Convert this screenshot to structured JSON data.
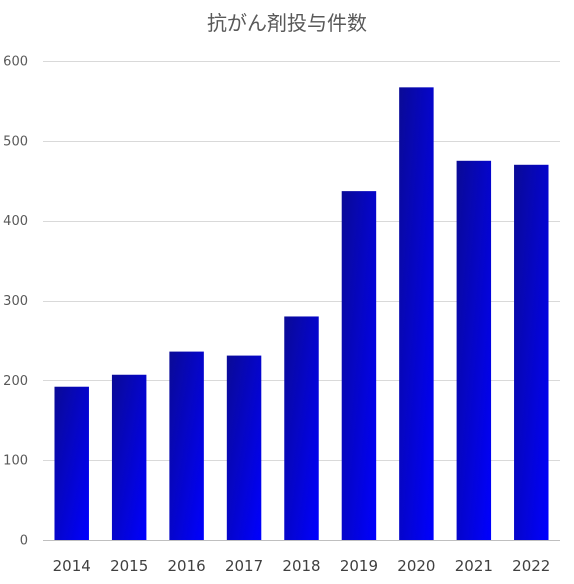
{
  "chart_data": {
    "type": "bar",
    "title": "抗がん剤投与件数",
    "xlabel": "",
    "ylabel": "",
    "categories": [
      "2014",
      "2015",
      "2016",
      "2017",
      "2018",
      "2019",
      "2020",
      "2021",
      "2022"
    ],
    "values": [
      192,
      207,
      236,
      231,
      280,
      437,
      567,
      475,
      470
    ],
    "ylim": [
      0,
      600
    ],
    "yticks": [
      0,
      100,
      200,
      300,
      400,
      500,
      600
    ],
    "grid": true,
    "legend": "none",
    "colors": {
      "bar_dark": "#0a0a96",
      "bar_light": "#0000ff",
      "grid": "#d9d9d9",
      "text": "#595959"
    }
  }
}
